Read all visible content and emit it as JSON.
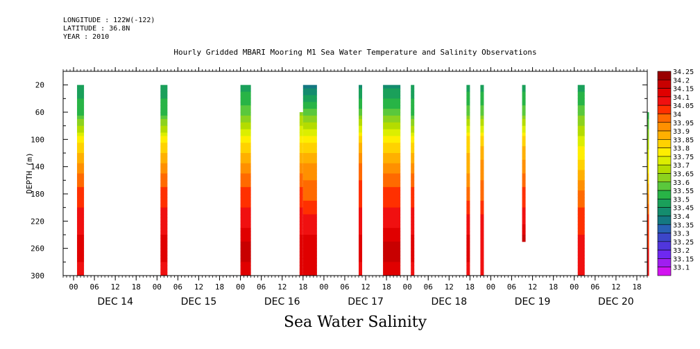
{
  "header": {
    "longitude": "LONGITUDE : 122W(-122)",
    "latitude": "LATITUDE : 36.8N",
    "year": "YEAR : 2010"
  },
  "title": "Hourly Gridded MBARI Mooring M1 Sea Water Temperature and Salinity Observations",
  "bottom_title": "Sea Water Salinity",
  "chart_data": {
    "type": "heatmap",
    "title": "Hourly Gridded MBARI Mooring M1 Sea Water Temperature and Salinity Observations",
    "xlabel": "",
    "ylabel": "DEPTH (m)",
    "y_inverted": true,
    "ylim": [
      300,
      0
    ],
    "y_ticks": [
      20,
      60,
      100,
      140,
      180,
      220,
      260,
      300
    ],
    "x_range_hours": [
      "DEC 13 21:00",
      "DEC 20 21:00"
    ],
    "x_tick_labels": [
      "00",
      "06",
      "12",
      "18",
      "00",
      "06",
      "12",
      "18",
      "00",
      "06",
      "12",
      "18",
      "00",
      "06",
      "12",
      "18",
      "00",
      "06",
      "12",
      "18",
      "00",
      "06",
      "12",
      "18",
      "00",
      "06",
      "12",
      "18"
    ],
    "x_day_labels": [
      "DEC 14",
      "DEC 15",
      "DEC 16",
      "DEC 17",
      "DEC 18",
      "DEC 19",
      "DEC 20"
    ],
    "colorbar": {
      "levels": [
        "34.25",
        "34.2",
        "34.15",
        "34.1",
        "34.05",
        "34",
        "33.95",
        "33.9",
        "33.85",
        "33.8",
        "33.75",
        "33.7",
        "33.65",
        "33.6",
        "33.55",
        "33.5",
        "33.45",
        "33.4",
        "33.35",
        "33.3",
        "33.25",
        "33.2",
        "33.15",
        "33.1"
      ],
      "colors": [
        "#990000",
        "#c80000",
        "#e00000",
        "#f01010",
        "#ff3000",
        "#ff6a00",
        "#ff9000",
        "#ffb000",
        "#ffd200",
        "#ffee00",
        "#dcee00",
        "#b4dc00",
        "#8cd21e",
        "#5ac83c",
        "#28b446",
        "#1aa05a",
        "#148c6e",
        "#147882",
        "#2860b4",
        "#3c46c8",
        "#5036dc",
        "#6e28f0",
        "#a01ef0",
        "#d214f0"
      ]
    },
    "observation_columns": [
      {
        "start_hour": 4,
        "end_hour": 6,
        "depth_top": 20,
        "depth_bottom": 300,
        "salinity_profile": [
          [
            20,
            33.5
          ],
          [
            60,
            33.55
          ],
          [
            100,
            33.8
          ],
          [
            140,
            33.95
          ],
          [
            180,
            34.05
          ],
          [
            220,
            34.1
          ],
          [
            260,
            34.15
          ],
          [
            300,
            34.1
          ]
        ]
      },
      {
        "start_hour": 28,
        "end_hour": 30,
        "depth_top": 20,
        "depth_bottom": 300,
        "salinity_profile": [
          [
            20,
            33.5
          ],
          [
            60,
            33.55
          ],
          [
            100,
            33.8
          ],
          [
            140,
            33.95
          ],
          [
            180,
            34.05
          ],
          [
            220,
            34.1
          ],
          [
            260,
            34.15
          ],
          [
            300,
            34.1
          ]
        ]
      },
      {
        "start_hour": 51,
        "end_hour": 54,
        "depth_top": 20,
        "depth_bottom": 300,
        "salinity_profile": [
          [
            20,
            33.5
          ],
          [
            60,
            33.6
          ],
          [
            100,
            33.8
          ],
          [
            140,
            33.95
          ],
          [
            180,
            34.05
          ],
          [
            220,
            34.1
          ],
          [
            260,
            34.2
          ],
          [
            300,
            34.15
          ]
        ]
      },
      {
        "start_hour": 68,
        "end_hour": 69,
        "depth_top": 60,
        "depth_bottom": 300,
        "salinity_profile": [
          [
            60,
            33.65
          ],
          [
            100,
            33.8
          ],
          [
            140,
            33.95
          ],
          [
            180,
            34.05
          ],
          [
            220,
            34.1
          ],
          [
            260,
            34.15
          ],
          [
            300,
            34.15
          ]
        ]
      },
      {
        "start_hour": 69,
        "end_hour": 73,
        "depth_top": 20,
        "depth_bottom": 300,
        "salinity_profile": [
          [
            20,
            33.4
          ],
          [
            60,
            33.6
          ],
          [
            100,
            33.8
          ],
          [
            140,
            33.95
          ],
          [
            180,
            34.0
          ],
          [
            220,
            34.1
          ],
          [
            260,
            34.15
          ],
          [
            300,
            34.15
          ]
        ]
      },
      {
        "start_hour": 85,
        "end_hour": 86,
        "depth_top": 20,
        "depth_bottom": 300,
        "salinity_profile": [
          [
            20,
            33.45
          ],
          [
            60,
            33.6
          ],
          [
            100,
            33.85
          ],
          [
            140,
            34.0
          ],
          [
            180,
            34.05
          ],
          [
            220,
            34.1
          ],
          [
            260,
            34.15
          ],
          [
            300,
            34.1
          ]
        ]
      },
      {
        "start_hour": 92,
        "end_hour": 97,
        "depth_top": 20,
        "depth_bottom": 300,
        "salinity_profile": [
          [
            20,
            33.45
          ],
          [
            60,
            33.6
          ],
          [
            100,
            33.8
          ],
          [
            140,
            33.95
          ],
          [
            180,
            34.05
          ],
          [
            220,
            34.1
          ],
          [
            260,
            34.2
          ],
          [
            300,
            34.15
          ]
        ]
      },
      {
        "start_hour": 100,
        "end_hour": 101,
        "depth_top": 20,
        "depth_bottom": 300,
        "salinity_profile": [
          [
            20,
            33.5
          ],
          [
            60,
            33.55
          ],
          [
            100,
            33.8
          ],
          [
            140,
            33.95
          ],
          [
            180,
            34.05
          ],
          [
            220,
            34.1
          ],
          [
            260,
            34.15
          ],
          [
            300,
            34.1
          ]
        ]
      },
      {
        "start_hour": 116,
        "end_hour": 117,
        "depth_top": 20,
        "depth_bottom": 300,
        "salinity_profile": [
          [
            20,
            33.5
          ],
          [
            60,
            33.6
          ],
          [
            100,
            33.85
          ],
          [
            140,
            33.9
          ],
          [
            180,
            34.0
          ],
          [
            220,
            34.1
          ],
          [
            260,
            34.15
          ],
          [
            300,
            34.1
          ]
        ]
      },
      {
        "start_hour": 120,
        "end_hour": 121,
        "depth_top": 20,
        "depth_bottom": 300,
        "salinity_profile": [
          [
            20,
            33.5
          ],
          [
            60,
            33.6
          ],
          [
            100,
            33.85
          ],
          [
            140,
            33.95
          ],
          [
            180,
            34.0
          ],
          [
            220,
            34.1
          ],
          [
            260,
            34.1
          ],
          [
            300,
            34.1
          ]
        ]
      },
      {
        "start_hour": 132,
        "end_hour": 133,
        "depth_top": 20,
        "depth_bottom": 250,
        "salinity_profile": [
          [
            20,
            33.5
          ],
          [
            60,
            33.6
          ],
          [
            100,
            33.85
          ],
          [
            140,
            33.95
          ],
          [
            180,
            34.05
          ],
          [
            220,
            34.1
          ],
          [
            250,
            34.2
          ]
        ]
      },
      {
        "start_hour": 148,
        "end_hour": 150,
        "depth_top": 20,
        "depth_bottom": 300,
        "salinity_profile": [
          [
            20,
            33.5
          ],
          [
            60,
            33.6
          ],
          [
            100,
            33.75
          ],
          [
            140,
            33.85
          ],
          [
            180,
            34.0
          ],
          [
            220,
            34.05
          ],
          [
            260,
            34.1
          ],
          [
            300,
            34.1
          ]
        ]
      },
      {
        "start_hour": 168,
        "end_hour": 168.5,
        "depth_top": 60,
        "depth_bottom": 300,
        "salinity_profile": [
          [
            60,
            33.55
          ],
          [
            140,
            33.8
          ],
          [
            220,
            34.05
          ],
          [
            300,
            34.1
          ]
        ]
      }
    ]
  }
}
